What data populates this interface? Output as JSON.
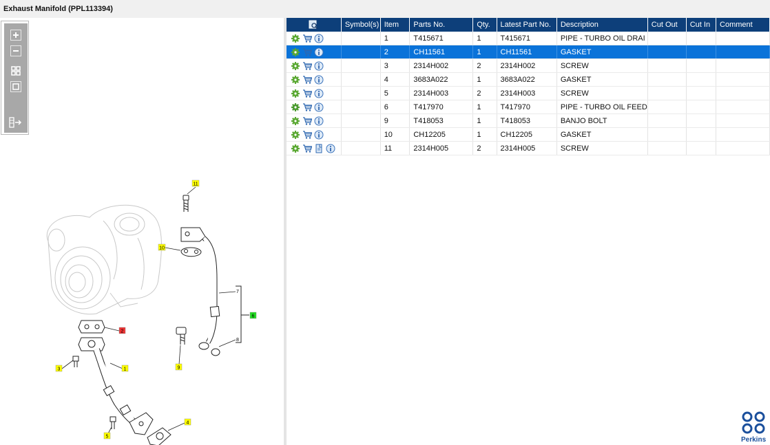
{
  "window": {
    "title": "Exhaust Manifold (PPL113394)"
  },
  "table": {
    "columns": [
      "",
      "Symbol(s)",
      "Item",
      "Parts No.",
      "Qty.",
      "Latest Part No.",
      "Description",
      "Cut Out",
      "Cut In",
      "Comment"
    ],
    "rows": [
      {
        "item": "1",
        "part_no": "T415671",
        "qty": "1",
        "latest": "T415671",
        "desc": "PIPE - TURBO OIL DRAI"
      },
      {
        "item": "2",
        "part_no": "CH11561",
        "qty": "1",
        "latest": "CH11561",
        "desc": "GASKET"
      },
      {
        "item": "3",
        "part_no": "2314H002",
        "qty": "2",
        "latest": "2314H002",
        "desc": "SCREW"
      },
      {
        "item": "4",
        "part_no": "3683A022",
        "qty": "1",
        "latest": "3683A022",
        "desc": "GASKET"
      },
      {
        "item": "5",
        "part_no": "2314H003",
        "qty": "2",
        "latest": "2314H003",
        "desc": "SCREW"
      },
      {
        "item": "6",
        "part_no": "T417970",
        "qty": "1",
        "latest": "T417970",
        "desc": "PIPE - TURBO OIL FEED"
      },
      {
        "item": "9",
        "part_no": "T418053",
        "qty": "1",
        "latest": "T418053",
        "desc": "BANJO BOLT"
      },
      {
        "item": "10",
        "part_no": "CH12205",
        "qty": "1",
        "latest": "CH12205",
        "desc": "GASKET"
      },
      {
        "item": "11",
        "part_no": "2314H005",
        "qty": "2",
        "latest": "2314H005",
        "desc": "SCREW"
      }
    ],
    "selected_index": 1
  },
  "diagram": {
    "callouts": [
      "11",
      "10",
      "7",
      "6",
      "8",
      "2",
      "9",
      "3",
      "1",
      "4",
      "5"
    ]
  },
  "brand": {
    "name": "Perkins",
    "color": "#1a4f9c"
  },
  "colors": {
    "header": "#0d3f7a",
    "selected": "#0a73d9",
    "callout_yellow": "#ffff00",
    "callout_red": "#ee3333",
    "callout_green": "#22dd22"
  }
}
